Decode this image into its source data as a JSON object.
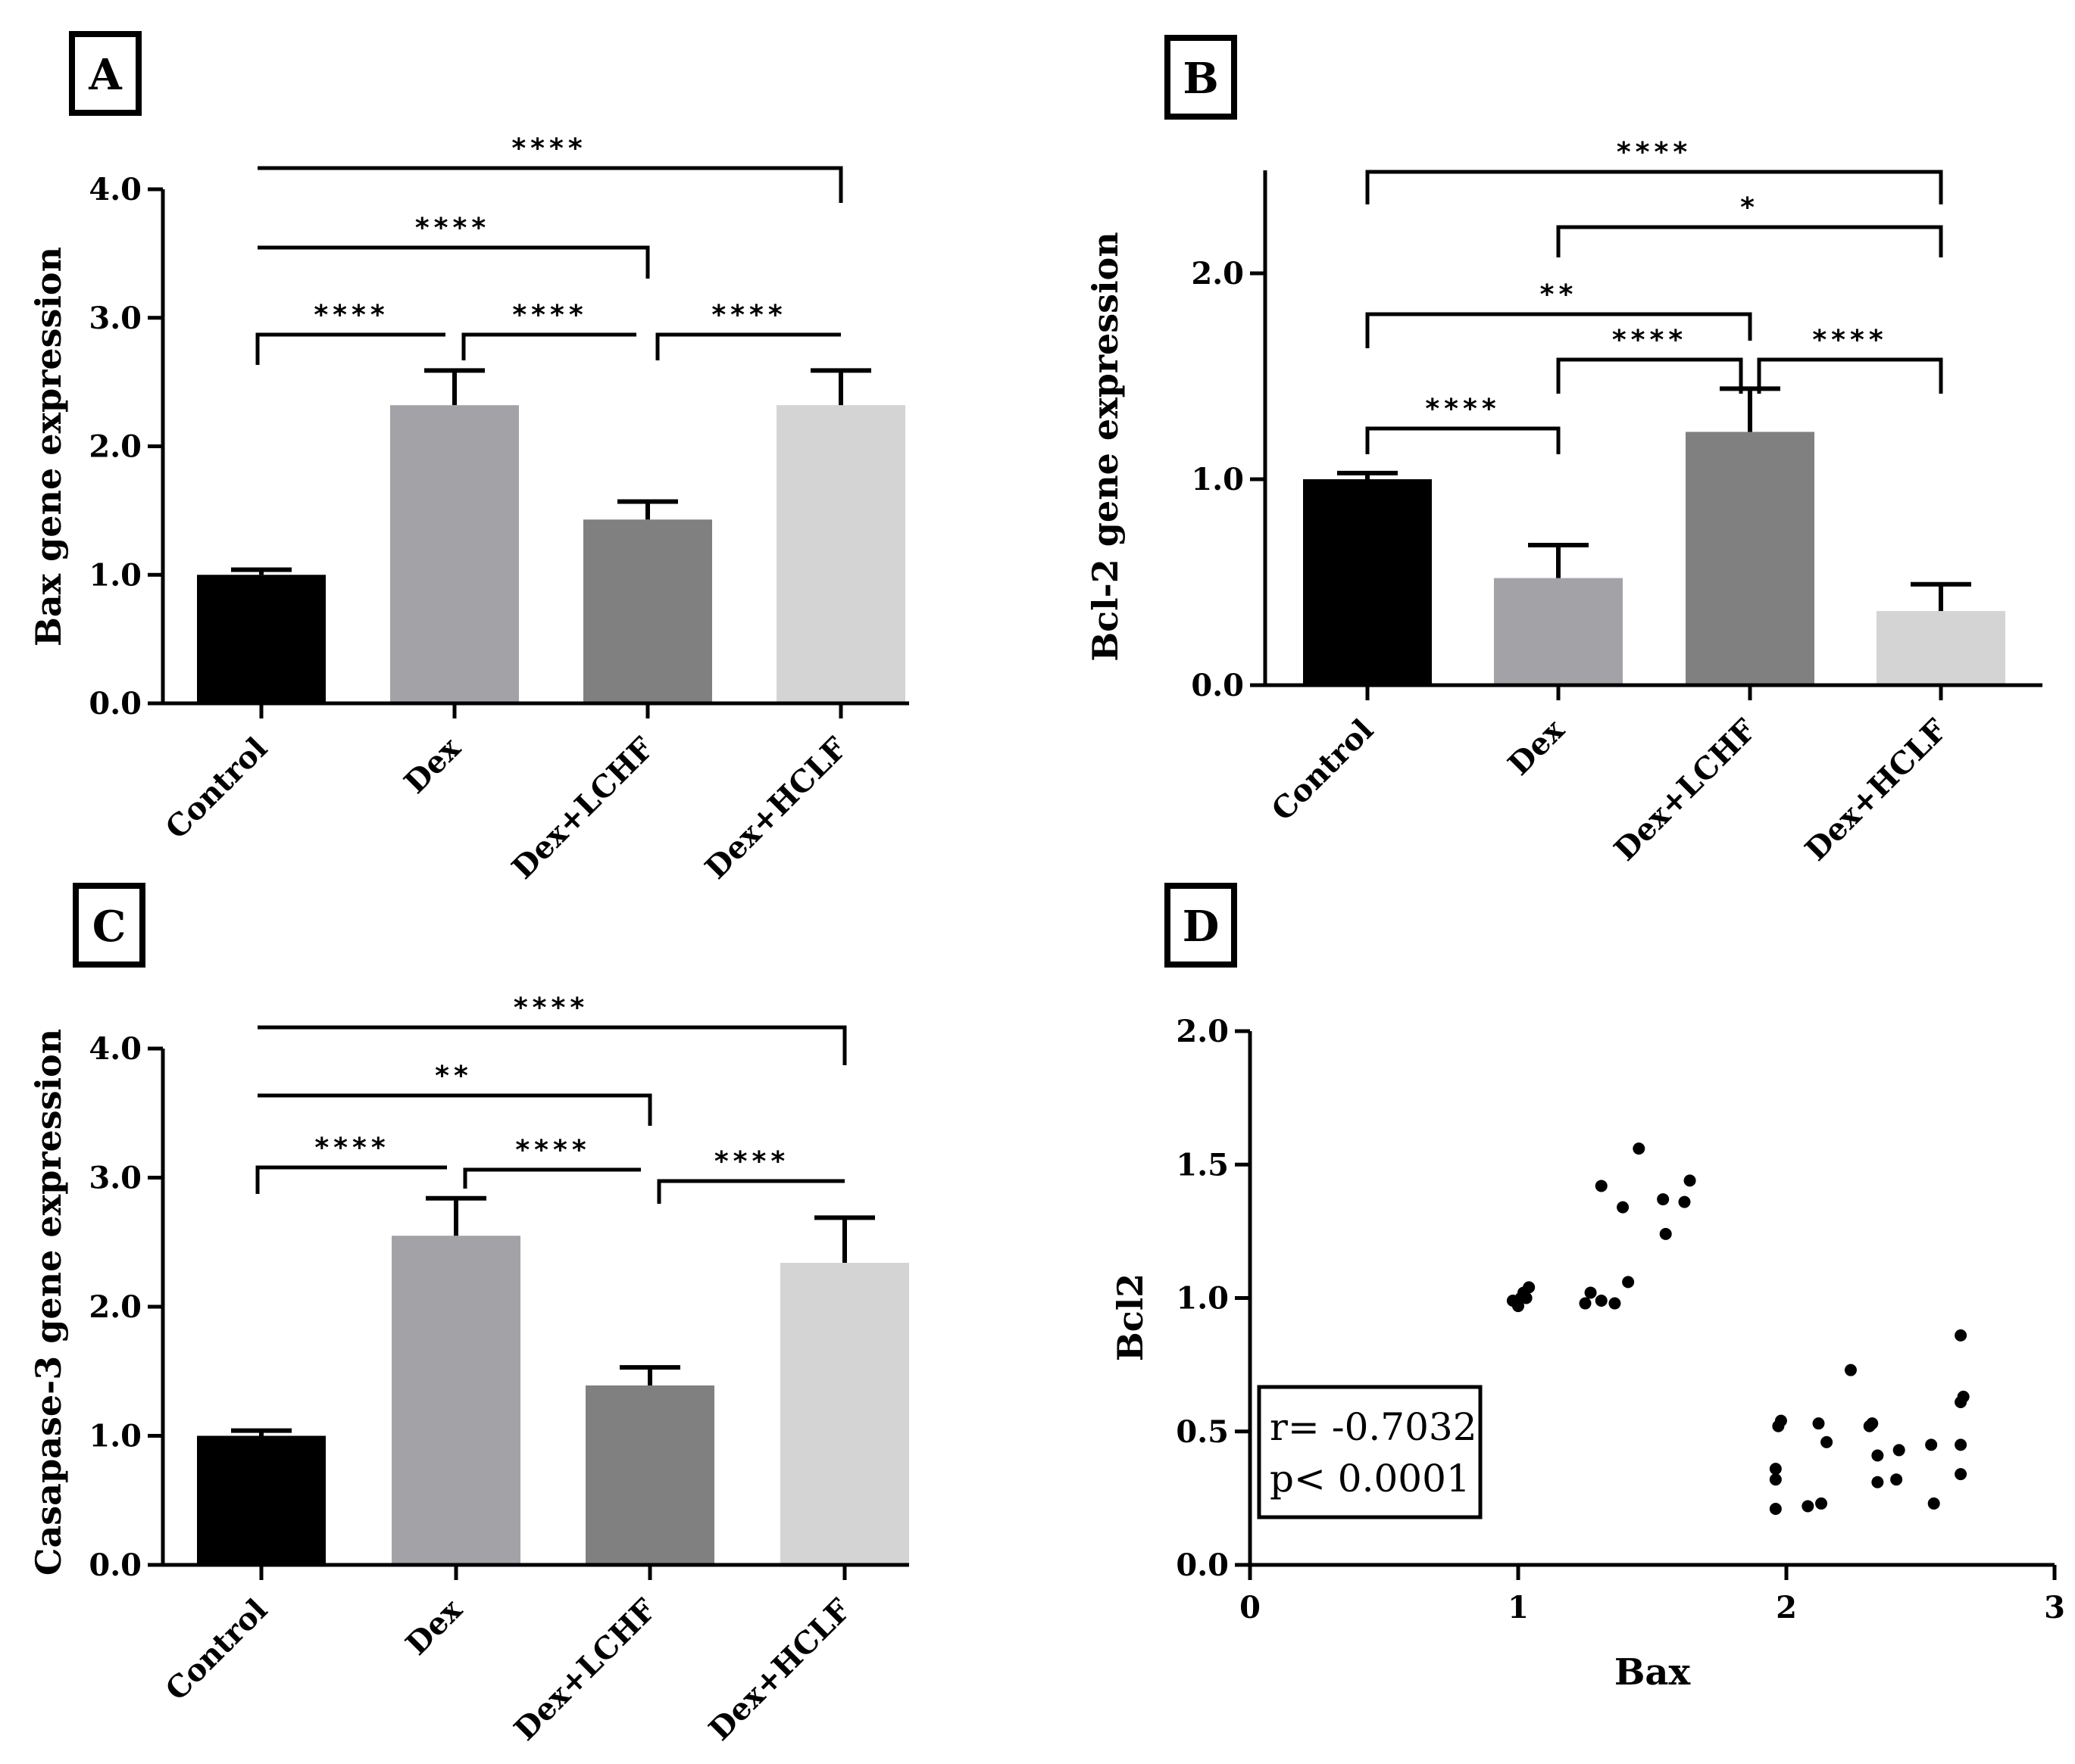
{
  "panels": [
    "A",
    "B",
    "C",
    "D"
  ],
  "chart_data": [
    {
      "panel": "A",
      "type": "bar",
      "categories": [
        "Control",
        "Dex",
        "Dex+LCHF",
        "Dex+HCLF"
      ],
      "values": [
        1.0,
        2.32,
        1.43,
        2.32
      ],
      "errors": [
        0.04,
        0.27,
        0.14,
        0.27
      ],
      "colors": [
        "#000000",
        "#a3a3a7",
        "#808080",
        "#d4d4d4"
      ],
      "ylabel": "Bax gene expression",
      "ylim": [
        0,
        4
      ],
      "yticks": [
        0,
        1,
        2,
        3,
        4
      ],
      "yticklabels": [
        "0.0",
        "1.0",
        "2.0",
        "3.0",
        "4.0"
      ],
      "comparisons": [
        {
          "from": 0,
          "to": 3,
          "label": "****"
        },
        {
          "from": 0,
          "to": 2,
          "label": "****"
        },
        {
          "from": 0,
          "to": 1,
          "label": "****"
        },
        {
          "from": 1,
          "to": 2,
          "label": "****"
        },
        {
          "from": 2,
          "to": 3,
          "label": "****"
        }
      ]
    },
    {
      "panel": "B",
      "type": "bar",
      "categories": [
        "Control",
        "Dex",
        "Dex+LCHF",
        "Dex+HCLF"
      ],
      "values": [
        1.0,
        0.52,
        1.23,
        0.36
      ],
      "errors": [
        0.03,
        0.16,
        0.21,
        0.13
      ],
      "colors": [
        "#000000",
        "#a3a3a7",
        "#808080",
        "#d4d4d4"
      ],
      "ylabel": "Bcl-2 gene expression",
      "ylim": [
        0,
        2.5
      ],
      "yticks": [
        0,
        1,
        2
      ],
      "yticklabels": [
        "0.0",
        "1.0",
        "2.0"
      ],
      "comparisons": [
        {
          "from": 0,
          "to": 3,
          "label": "****"
        },
        {
          "from": 1,
          "to": 3,
          "label": "*"
        },
        {
          "from": 0,
          "to": 2,
          "label": "**"
        },
        {
          "from": 1,
          "to": 2,
          "label": "****"
        },
        {
          "from": 2,
          "to": 3,
          "label": "****"
        },
        {
          "from": 0,
          "to": 1,
          "label": "****"
        }
      ]
    },
    {
      "panel": "C",
      "type": "bar",
      "categories": [
        "Control",
        "Dex",
        "Dex+LCHF",
        "Dex+HCLF"
      ],
      "values": [
        1.0,
        2.55,
        1.39,
        2.34
      ],
      "errors": [
        0.04,
        0.29,
        0.14,
        0.35
      ],
      "colors": [
        "#000000",
        "#a3a3a7",
        "#808080",
        "#d4d4d4"
      ],
      "ylabel": "Casapase-3 gene expression",
      "ylim": [
        0,
        4
      ],
      "yticks": [
        0,
        1,
        2,
        3,
        4
      ],
      "yticklabels": [
        "0.0",
        "1.0",
        "2.0",
        "3.0",
        "4.0"
      ],
      "comparisons": [
        {
          "from": 0,
          "to": 3,
          "label": "****"
        },
        {
          "from": 0,
          "to": 2,
          "label": "**"
        },
        {
          "from": 0,
          "to": 1,
          "label": "****"
        },
        {
          "from": 1,
          "to": 2,
          "label": "****"
        },
        {
          "from": 2,
          "to": 3,
          "label": "****"
        }
      ]
    },
    {
      "panel": "D",
      "type": "scatter",
      "xlabel": "Bax",
      "ylabel": "Bcl2",
      "xlim": [
        0,
        3
      ],
      "ylim": [
        0,
        2
      ],
      "xticks": [
        0,
        1,
        2,
        3
      ],
      "xticklabels": [
        "0",
        "1",
        "2",
        "3"
      ],
      "yticks": [
        0,
        0.5,
        1,
        1.5,
        2
      ],
      "yticklabels": [
        "0.0",
        "0.5",
        "1.0",
        "1.5",
        "2.0"
      ],
      "points": [
        [
          0.98,
          0.99
        ],
        [
          1.0,
          0.97
        ],
        [
          1.01,
          1.0
        ],
        [
          1.02,
          1.02
        ],
        [
          1.03,
          1.0
        ],
        [
          1.04,
          1.04
        ],
        [
          1.25,
          0.98
        ],
        [
          1.27,
          1.02
        ],
        [
          1.31,
          0.99
        ],
        [
          1.36,
          0.98
        ],
        [
          1.31,
          1.42
        ],
        [
          1.39,
          1.34
        ],
        [
          1.41,
          1.06
        ],
        [
          1.45,
          1.56
        ],
        [
          1.54,
          1.37
        ],
        [
          1.55,
          1.24
        ],
        [
          1.62,
          1.36
        ],
        [
          1.64,
          1.44
        ],
        [
          1.96,
          0.21
        ],
        [
          1.96,
          0.32
        ],
        [
          1.96,
          0.36
        ],
        [
          1.97,
          0.52
        ],
        [
          1.98,
          0.54
        ],
        [
          2.08,
          0.22
        ],
        [
          2.12,
          0.53
        ],
        [
          2.13,
          0.23
        ],
        [
          2.15,
          0.46
        ],
        [
          2.24,
          0.73
        ],
        [
          2.31,
          0.52
        ],
        [
          2.32,
          0.53
        ],
        [
          2.34,
          0.41
        ],
        [
          2.34,
          0.31
        ],
        [
          2.41,
          0.32
        ],
        [
          2.42,
          0.43
        ],
        [
          2.54,
          0.45
        ],
        [
          2.55,
          0.23
        ],
        [
          2.65,
          0.86
        ],
        [
          2.65,
          0.61
        ],
        [
          2.66,
          0.63
        ],
        [
          2.65,
          0.45
        ],
        [
          2.65,
          0.34
        ]
      ],
      "stats": {
        "r": "r= -0.7032",
        "p": "p< 0.0001"
      }
    }
  ]
}
